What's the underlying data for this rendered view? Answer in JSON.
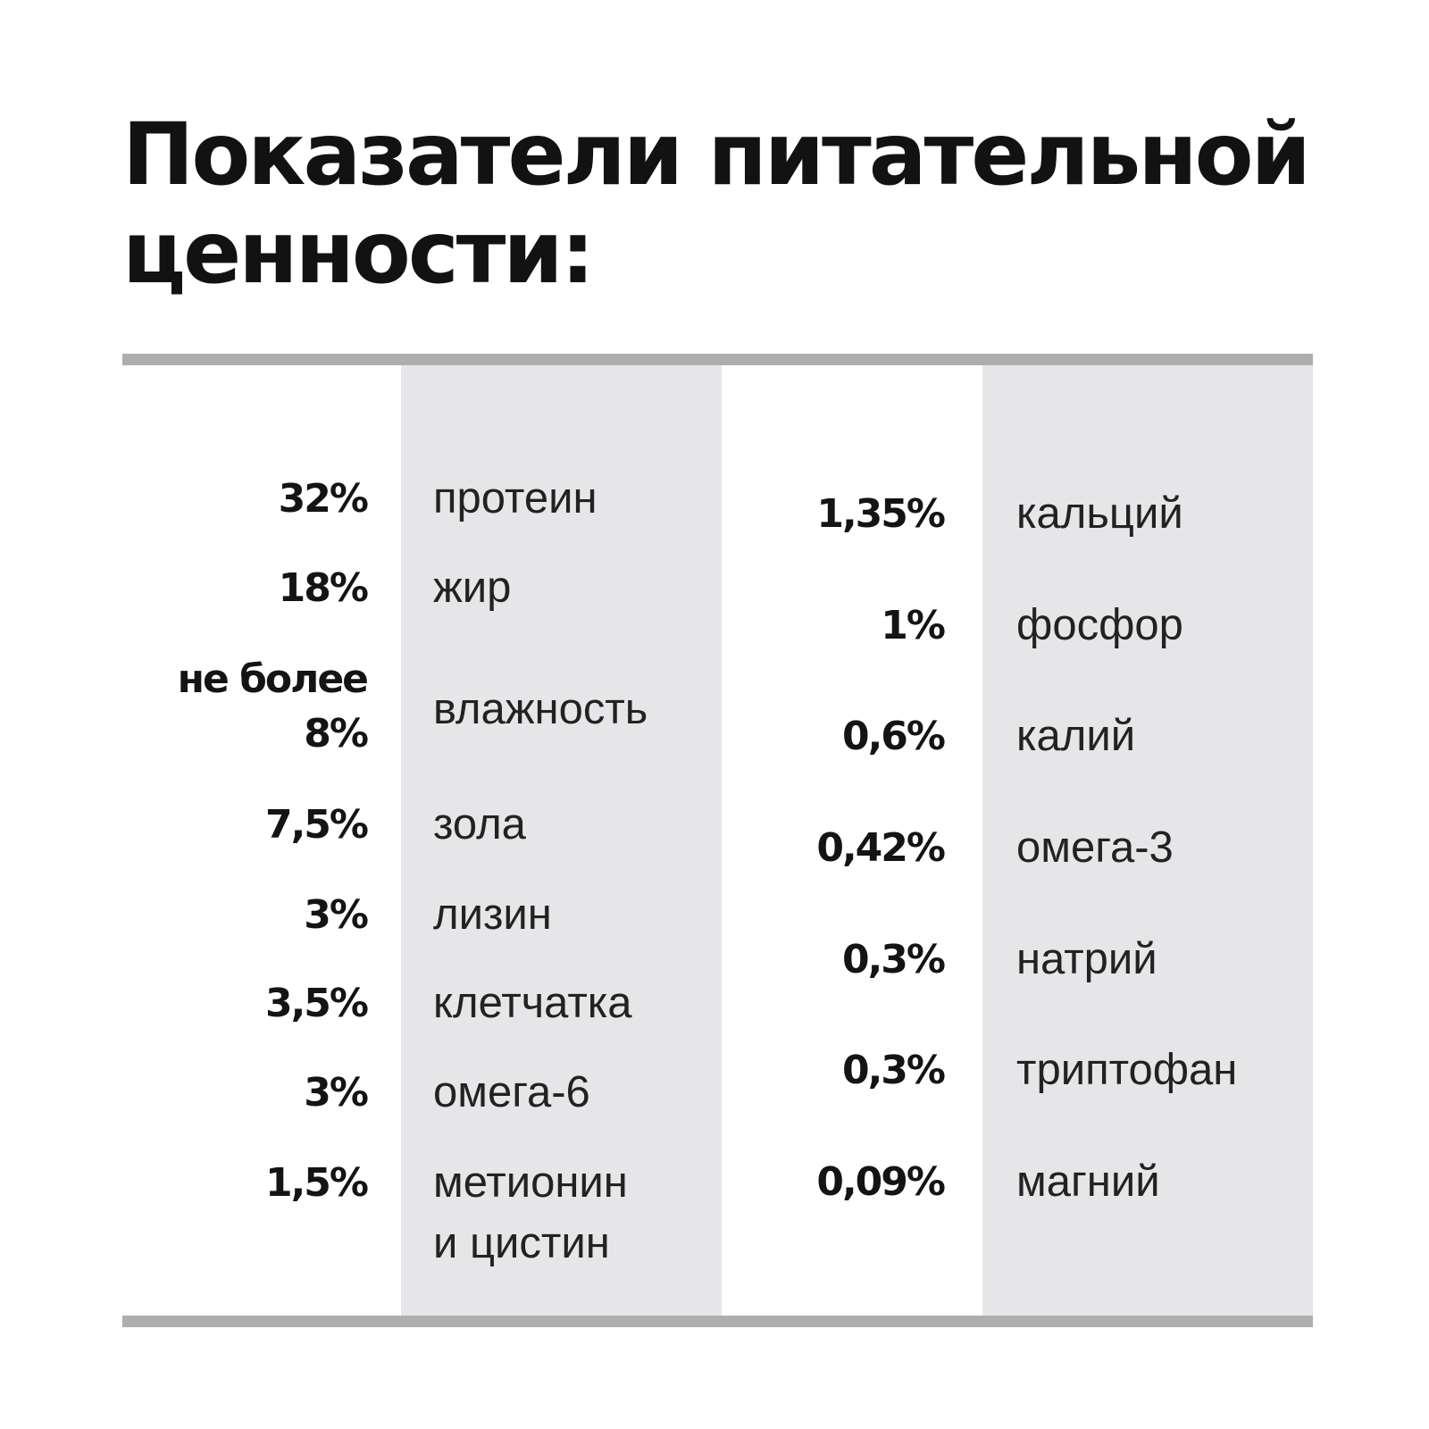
{
  "title_line1": "Показатели питательной",
  "title_line2": "ценности:",
  "left_column": [
    {
      "value": "32%",
      "name": "протеин"
    },
    {
      "value": "18%",
      "name": "жир"
    },
    {
      "value_line1": "не более",
      "value_line2": "8%",
      "name": "влажность"
    },
    {
      "value": "7,5%",
      "name": "зола"
    },
    {
      "value": "3%",
      "name": "лизин"
    },
    {
      "value": "3,5%",
      "name": "клетчатка"
    },
    {
      "value": "3%",
      "name": "омега-6"
    },
    {
      "value": "1,5%",
      "name_line1": "метионин",
      "name_line2": "и цистин"
    }
  ],
  "right_column": [
    {
      "value": "1,35%",
      "name": "кальций"
    },
    {
      "value": "1%",
      "name": "фосфор"
    },
    {
      "value": "0,6%",
      "name": "калий"
    },
    {
      "value": "0,42%",
      "name": "омега-3"
    },
    {
      "value": "0,3%",
      "name": "натрий"
    },
    {
      "value": "0,3%",
      "name": "триптофан"
    },
    {
      "value": "0,09%",
      "name": "магний"
    }
  ]
}
